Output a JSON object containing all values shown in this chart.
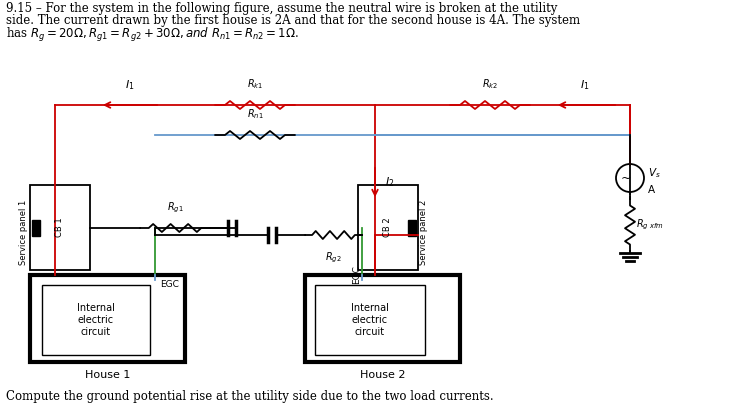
{
  "bg_color": "#ffffff",
  "line_color": "#000000",
  "red_color": "#cc0000",
  "blue_color": "#6699cc",
  "green_color": "#339933",
  "fig_width": 7.52,
  "fig_height": 4.09,
  "top_text_line1": "9.15 – For the system in the following figure, assume the neutral wire is broken at the utility",
  "top_text_line2": "side. The current drawn by the first house is 2A and that for the second house is 4A. The system",
  "top_text_line3": "has $R_g = 20\\Omega, R_{g1} = R_{g2} + 30\\Omega, and\\ R_{n1} = R_{n2} = 1\\Omega$.",
  "bottom_text": "Compute the ground potential rise at the utility side due to the two load currents."
}
